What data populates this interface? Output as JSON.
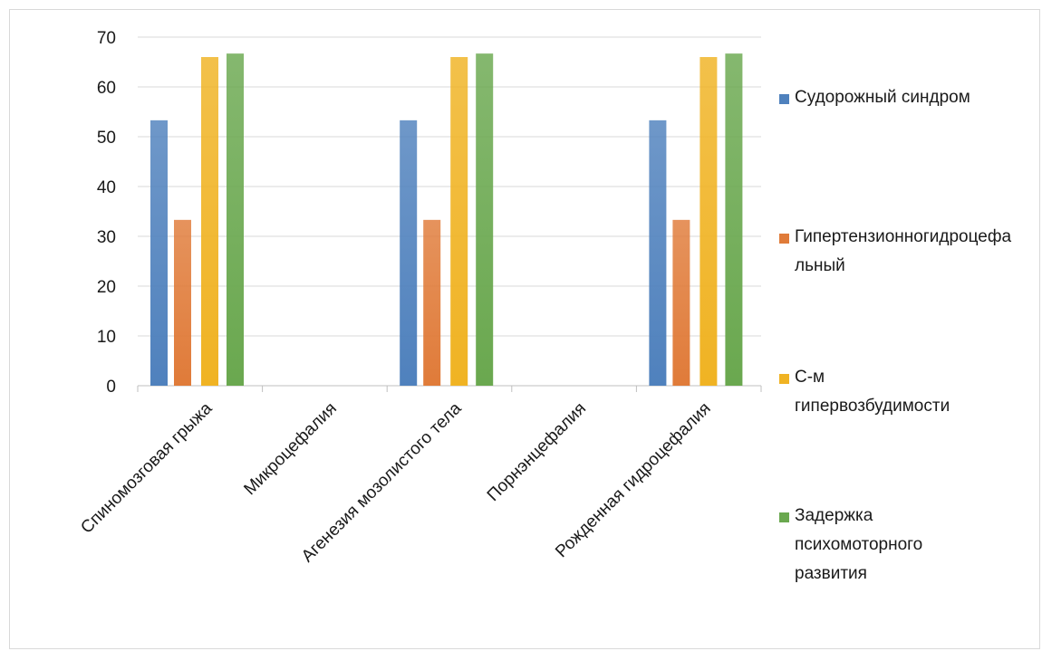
{
  "chart_data": {
    "type": "bar",
    "title": "",
    "xlabel": "",
    "ylabel": "",
    "ylim": [
      0,
      70
    ],
    "yticks": [
      0,
      10,
      20,
      30,
      40,
      50,
      60,
      70
    ],
    "grid": true,
    "legend_position": "right",
    "categories": [
      "Спиномозговая грыжа",
      "Микроцефалия",
      "Агенезия мозолистого тела",
      "Порнэнцефалия",
      "Рожденная гидроцефалия"
    ],
    "series": [
      {
        "name": "Судорожный синдром",
        "color": "#4f81bd",
        "values": [
          53.3,
          0,
          53.3,
          0,
          53.3
        ]
      },
      {
        "name": "Гипертензионногидроцефальный",
        "color": "#e07b39",
        "values": [
          33.3,
          0,
          33.3,
          0,
          33.3
        ]
      },
      {
        "name": "С-м гипервозбудимости",
        "color": "#f0b323",
        "values": [
          66,
          0,
          66,
          0,
          66
        ]
      },
      {
        "name": "Задержка психомоторного развития",
        "color": "#6aa84f",
        "values": [
          66.7,
          0,
          66.7,
          0,
          66.7
        ]
      }
    ]
  }
}
